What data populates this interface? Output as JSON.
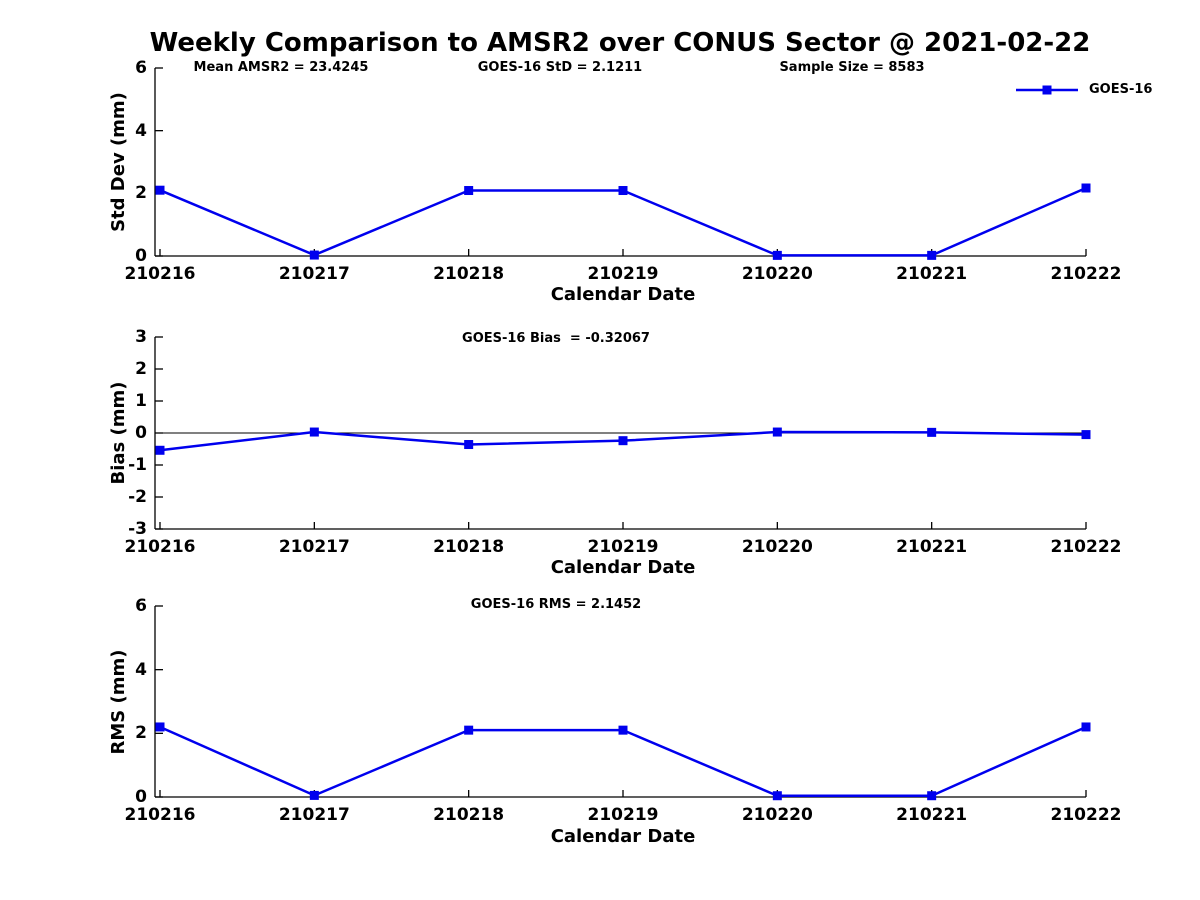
{
  "figure": {
    "title": "Weekly Comparison to AMSR2 over CONUS Sector @ 2021-02-22",
    "top_annotations": {
      "mean_amsr2": "Mean AMSR2 = 23.4245",
      "goes16_std": "GOES-16 StD = 2.1211",
      "sample_size": "Sample Size = 8583"
    },
    "legend": {
      "label": "GOES-16",
      "color": "#0000EE"
    },
    "colors": {
      "series": "#0000EE",
      "axis": "#000000",
      "text": "#000000"
    }
  },
  "chart_data": [
    {
      "type": "line",
      "title": "",
      "categories": [
        "210216",
        "210217",
        "210218",
        "210219",
        "210220",
        "210221",
        "210222"
      ],
      "series": [
        {
          "name": "GOES-16",
          "color": "#0000EE",
          "marker": "square",
          "values": [
            2.1,
            0.03,
            2.09,
            2.09,
            0.02,
            0.02,
            2.17
          ]
        }
      ],
      "xlabel": "Calendar Date",
      "ylabel": "Std Dev (mm)",
      "ylim": [
        0,
        6
      ],
      "yticks": [
        0,
        2,
        4,
        6
      ],
      "grid": false,
      "zero_line": false,
      "legend_position": "top-right",
      "annotations": [
        "Mean AMSR2 = 23.4245",
        "GOES-16 StD = 2.1211",
        "Sample Size = 8583"
      ]
    },
    {
      "type": "line",
      "title": "",
      "categories": [
        "210216",
        "210217",
        "210218",
        "210219",
        "210220",
        "210221",
        "210222"
      ],
      "series": [
        {
          "name": "GOES-16",
          "color": "#0000EE",
          "marker": "square",
          "values": [
            -0.54,
            0.03,
            -0.36,
            -0.24,
            0.03,
            0.02,
            -0.05
          ]
        }
      ],
      "xlabel": "Calendar Date",
      "ylabel": "Bias (mm)",
      "ylim": [
        -3,
        3
      ],
      "yticks": [
        -3,
        -2,
        -1,
        0,
        1,
        2,
        3
      ],
      "grid": false,
      "zero_line": true,
      "annotation": "GOES-16 Bias  = -0.32067"
    },
    {
      "type": "line",
      "title": "",
      "categories": [
        "210216",
        "210217",
        "210218",
        "210219",
        "210220",
        "210221",
        "210222"
      ],
      "series": [
        {
          "name": "GOES-16",
          "color": "#0000EE",
          "marker": "square",
          "values": [
            2.2,
            0.05,
            2.1,
            2.1,
            0.04,
            0.04,
            2.2
          ]
        }
      ],
      "xlabel": "Calendar Date",
      "ylabel": "RMS (mm)",
      "ylim": [
        0,
        6
      ],
      "yticks": [
        0,
        2,
        4,
        6
      ],
      "grid": false,
      "zero_line": false,
      "annotation": "GOES-16 RMS = 2.1452"
    }
  ]
}
